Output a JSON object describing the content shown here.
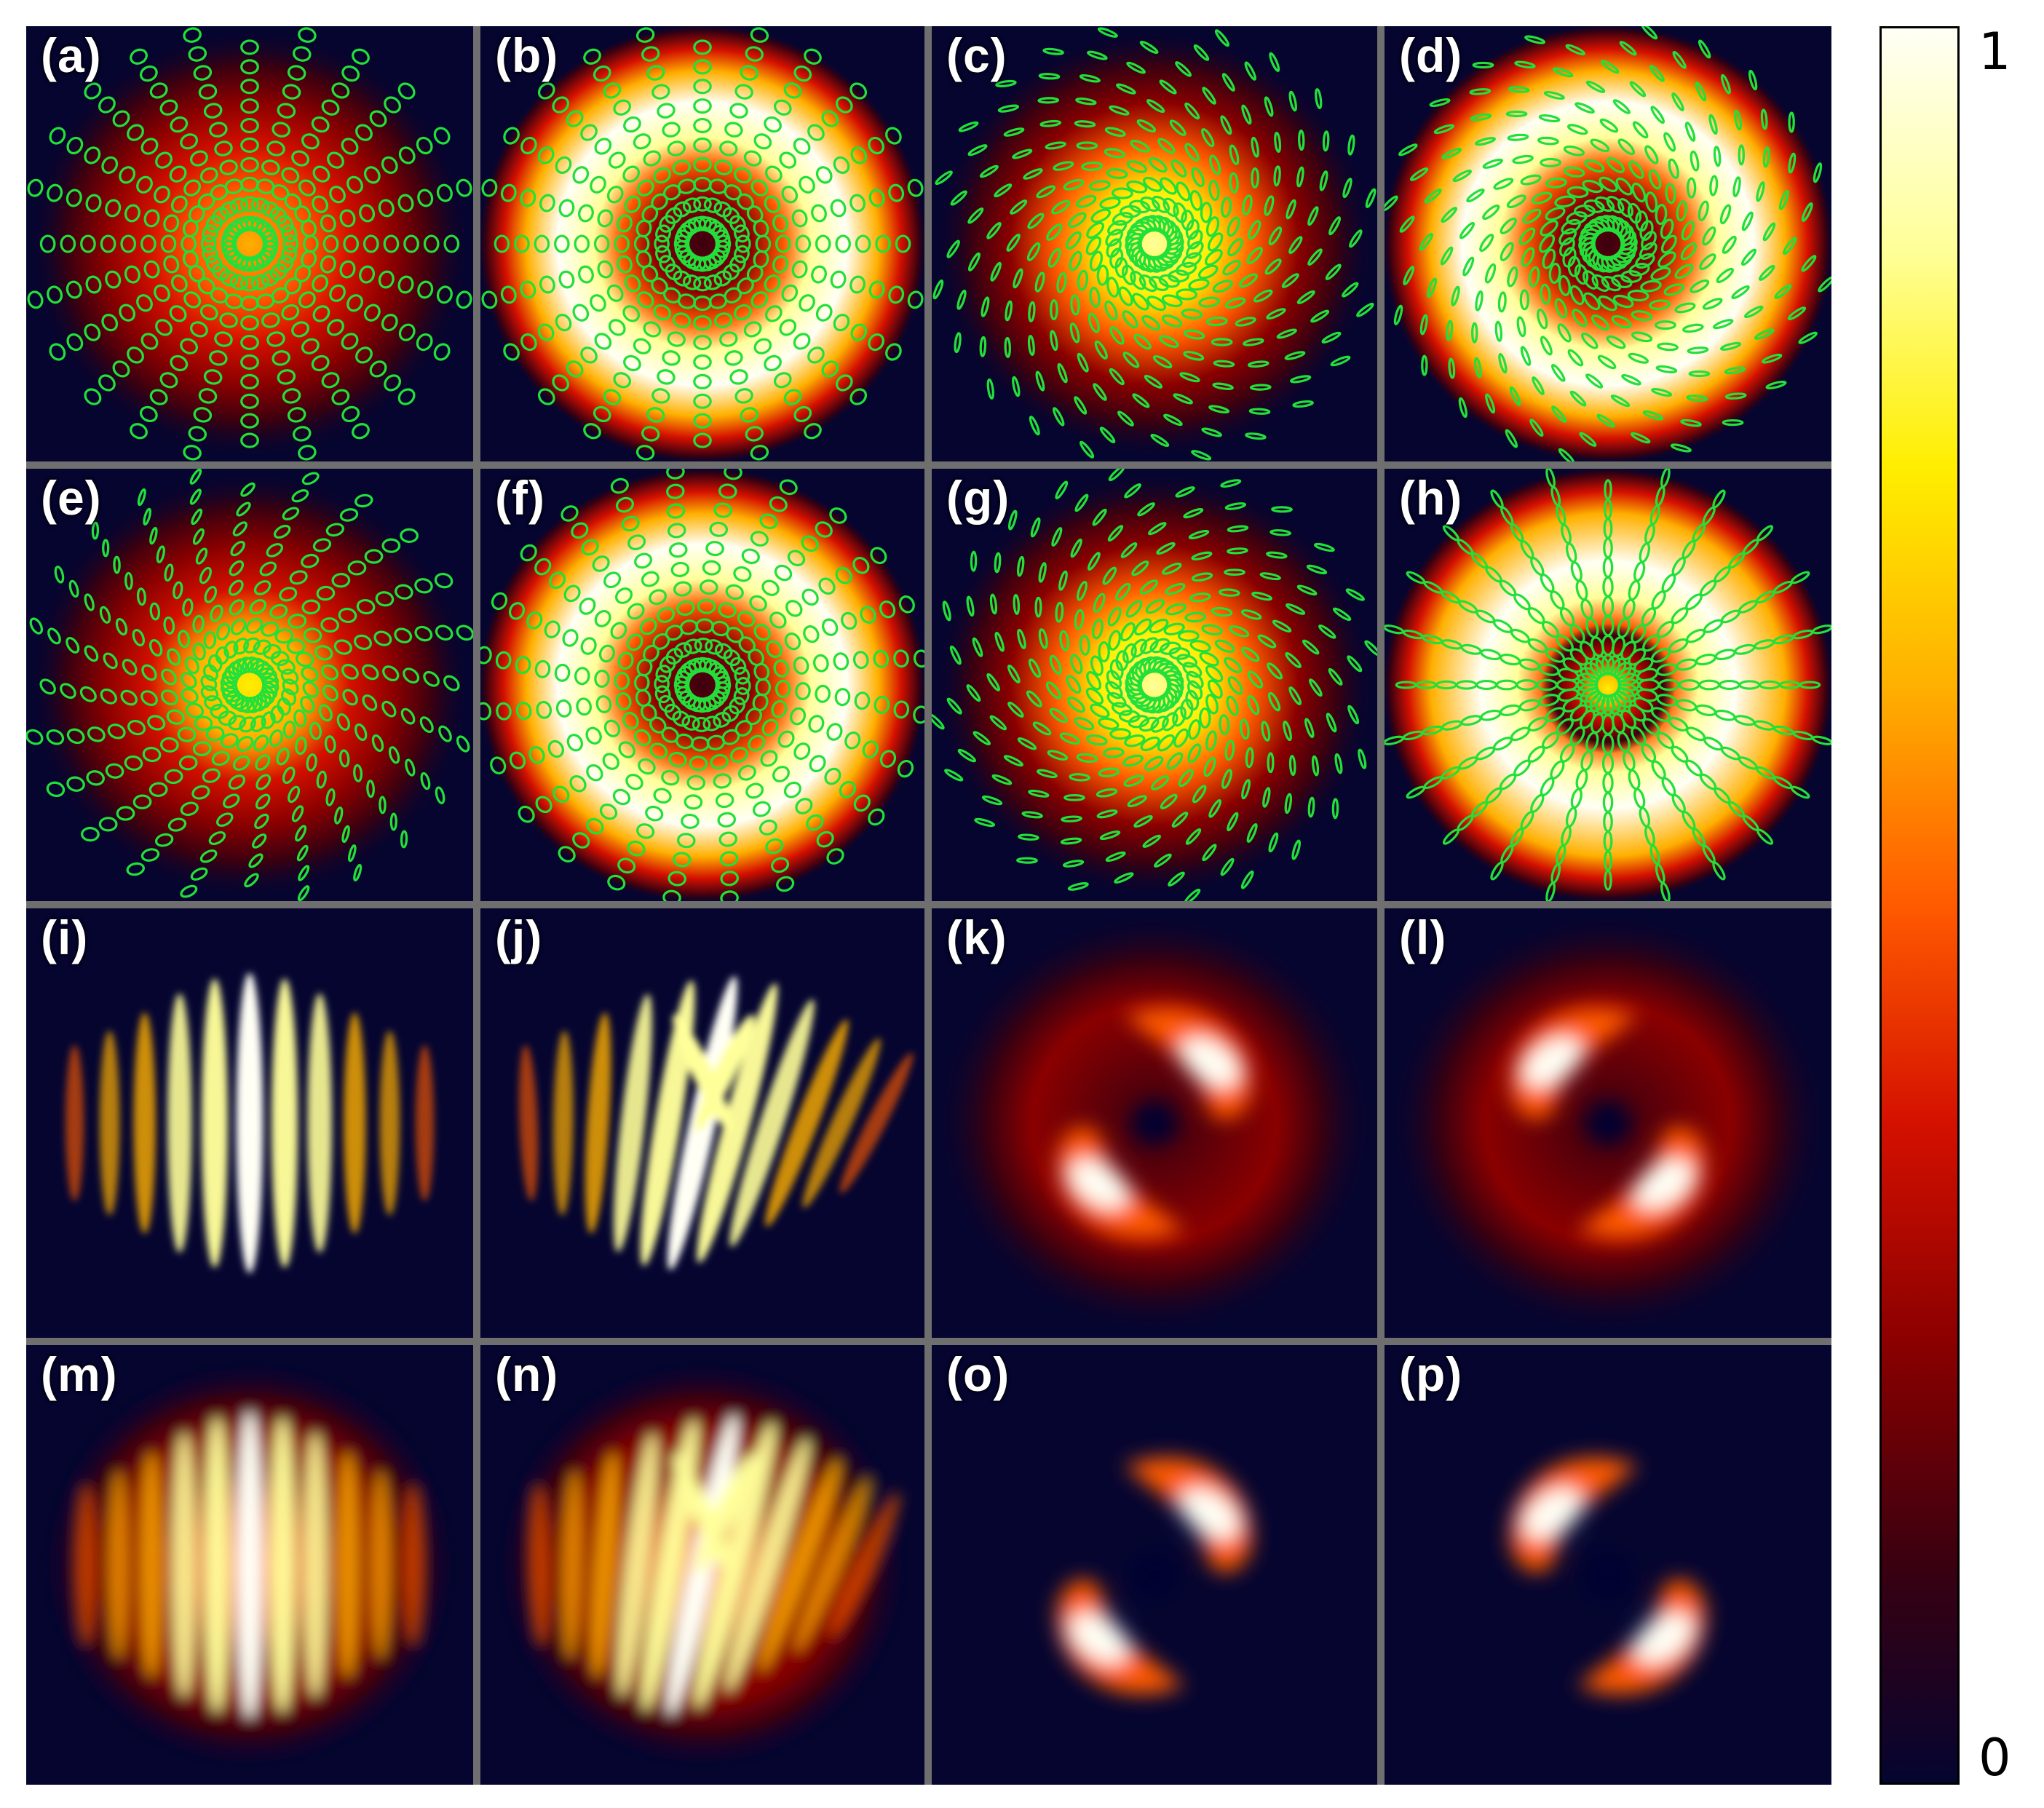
{
  "figure": {
    "panels": [
      {
        "label": "(a)",
        "kind": "polar",
        "profile": "gauss",
        "ellipse": "ring",
        "twist": 0,
        "core": 0,
        "bright": 0.6
      },
      {
        "label": "(b)",
        "kind": "polar",
        "profile": "donut",
        "ellipse": "ring",
        "twist": 0,
        "core": 0,
        "bright": 1.0
      },
      {
        "label": "(c)",
        "kind": "polar",
        "profile": "gauss",
        "ellipse": "spiral",
        "twist": 0.6,
        "core": 0,
        "bright": 0.85
      },
      {
        "label": "(d)",
        "kind": "polar",
        "profile": "donut",
        "ellipse": "spiral",
        "twist": 0.7,
        "core": 0,
        "bright": 1.0
      },
      {
        "label": "(e)",
        "kind": "polar",
        "profile": "gauss",
        "ellipse": "mixed",
        "twist": 0.2,
        "core": 0,
        "bright": 0.7
      },
      {
        "label": "(f)",
        "kind": "polar",
        "profile": "donut",
        "ellipse": "ring",
        "twist": 0.1,
        "core": 0,
        "bright": 1.0
      },
      {
        "label": "(g)",
        "kind": "polar",
        "profile": "gauss",
        "ellipse": "spiral",
        "twist": -0.5,
        "core": 0,
        "bright": 0.85
      },
      {
        "label": "(h)",
        "kind": "polar",
        "profile": "donut",
        "ellipse": "radial",
        "twist": 0,
        "core": 1,
        "bright": 1.0
      },
      {
        "label": "(i)",
        "kind": "fringes",
        "variant": "straight"
      },
      {
        "label": "(j)",
        "kind": "fringes",
        "variant": "fork"
      },
      {
        "label": "(k)",
        "kind": "lobes",
        "variant": "k"
      },
      {
        "label": "(l)",
        "kind": "lobes",
        "variant": "l"
      },
      {
        "label": "(m)",
        "kind": "fringes",
        "variant": "blur"
      },
      {
        "label": "(n)",
        "kind": "fringes",
        "variant": "forkblur"
      },
      {
        "label": "(o)",
        "kind": "lobes",
        "variant": "o"
      },
      {
        "label": "(p)",
        "kind": "lobes",
        "variant": "p"
      }
    ],
    "colorbar": {
      "max_label": "1",
      "min_label": "0",
      "colormap": [
        "#050530",
        "#3a0010",
        "#8a0000",
        "#d41000",
        "#ff5a00",
        "#ffb000",
        "#ffee00",
        "#ffff9a",
        "#fffff5"
      ]
    },
    "polarization_color": "#22e03a"
  }
}
